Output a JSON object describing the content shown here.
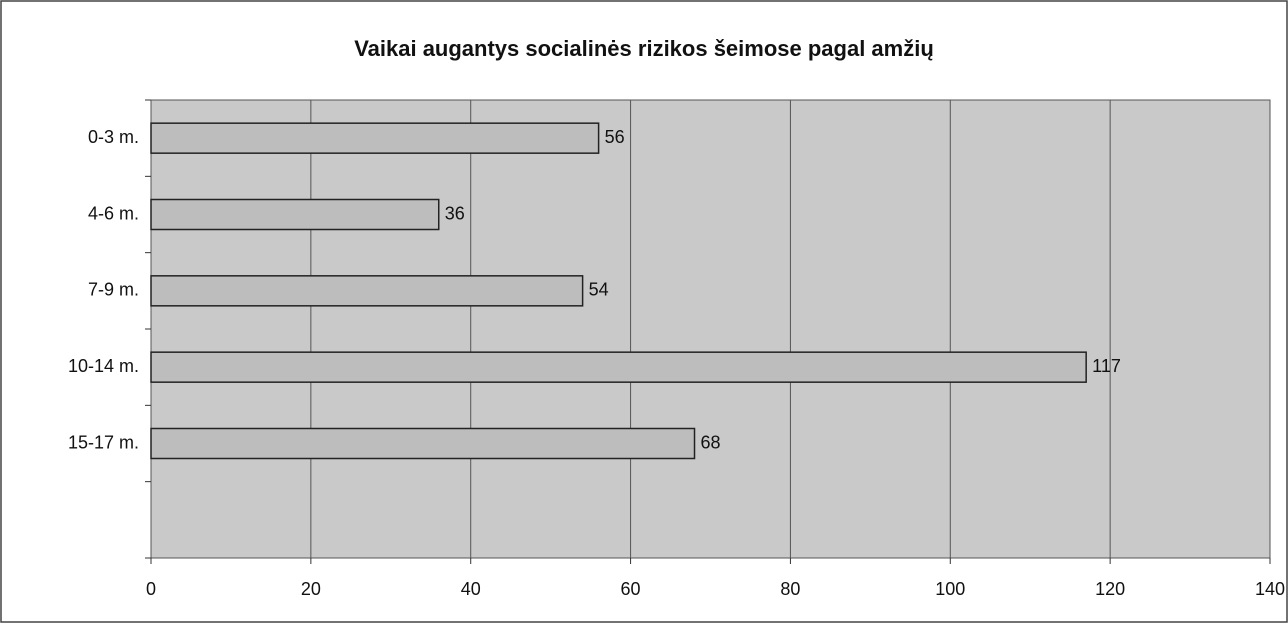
{
  "chart_data": {
    "type": "bar",
    "orientation": "horizontal",
    "title": "Vaikai augantys socialinės rizikos šeimose pagal amžių",
    "categories": [
      "0-3 m.",
      "4-6 m.",
      "7-9 m.",
      "10-14 m.",
      "15-17 m.",
      null
    ],
    "values": [
      56,
      36,
      54,
      117,
      68,
      null
    ],
    "color": "#bdbdbd",
    "xlim": [
      0,
      140
    ],
    "xticks": [
      0,
      20,
      40,
      60,
      80,
      100,
      120,
      140
    ],
    "grid": true
  }
}
